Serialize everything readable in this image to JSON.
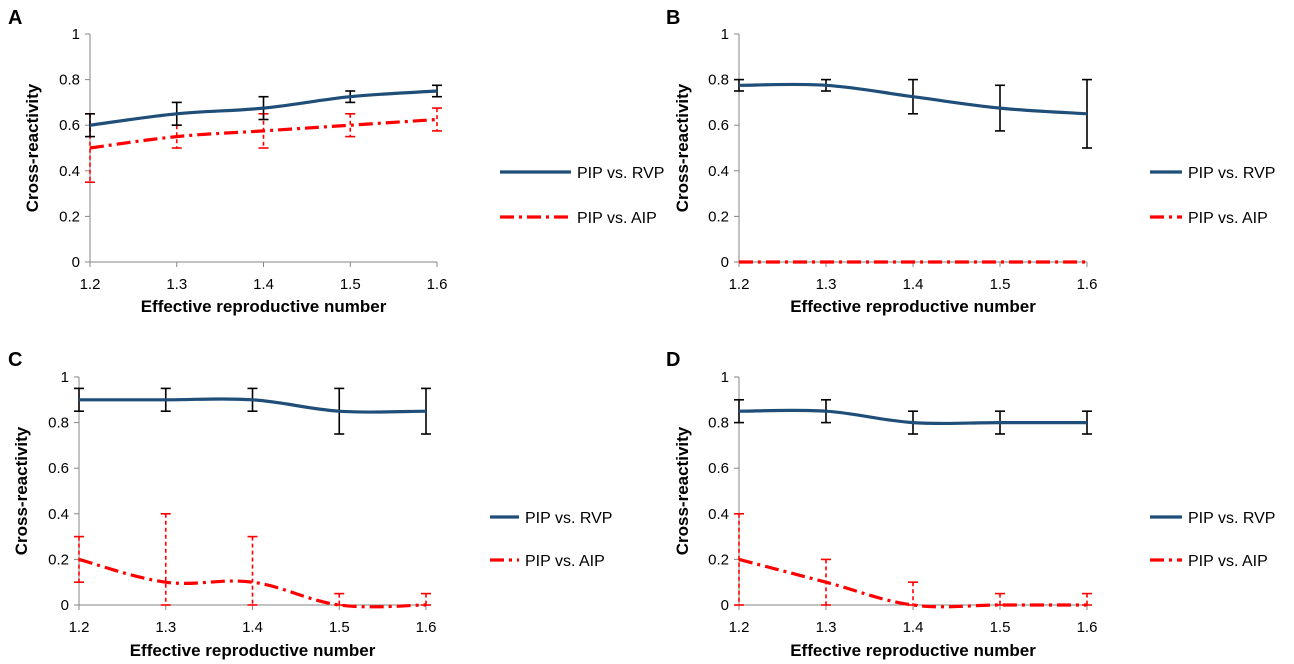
{
  "chart_data": [
    {
      "type": "line",
      "panel_label": "A",
      "title": "",
      "xlabel": "Effective reproductive number",
      "ylabel": "Cross-reactivity",
      "x": [
        1.2,
        1.3,
        1.4,
        1.5,
        1.6
      ],
      "xlim": [
        1.2,
        1.6
      ],
      "ylim": [
        0,
        1
      ],
      "y_ticks": [
        "0",
        "0.2",
        "0.4",
        "0.6",
        "0.8",
        "1"
      ],
      "x_ticks": [
        "1.2",
        "1.3",
        "1.4",
        "1.5",
        "1.6"
      ],
      "grid": false,
      "legend_position": "right",
      "series": [
        {
          "name": "PIP vs. RVP",
          "color": "#1F4E79",
          "style": "solid",
          "error_color": "#000000",
          "values": [
            0.6,
            0.65,
            0.675,
            0.725,
            0.75
          ],
          "errors": [
            0.05,
            0.05,
            0.05,
            0.025,
            0.025
          ]
        },
        {
          "name": "PIP vs. AIP",
          "color": "#FF0000",
          "style": "dash-dot",
          "error_color": "#FF0000",
          "values": [
            0.5,
            0.55,
            0.575,
            0.6,
            0.625
          ],
          "errors": [
            0.15,
            0.05,
            0.075,
            0.05,
            0.05
          ]
        }
      ]
    },
    {
      "type": "line",
      "panel_label": "B",
      "title": "",
      "xlabel": "Effective reproductive number",
      "ylabel": "Cross-reactivity",
      "x": [
        1.2,
        1.3,
        1.4,
        1.5,
        1.6
      ],
      "xlim": [
        1.2,
        1.6
      ],
      "ylim": [
        0,
        1
      ],
      "y_ticks": [
        "0",
        "0.2",
        "0.4",
        "0.6",
        "0.8",
        "1"
      ],
      "x_ticks": [
        "1.2",
        "1.3",
        "1.4",
        "1.5",
        "1.6"
      ],
      "grid": false,
      "legend_position": "right",
      "series": [
        {
          "name": "PIP vs. RVP",
          "color": "#1F4E79",
          "style": "solid",
          "error_color": "#000000",
          "values": [
            0.775,
            0.775,
            0.725,
            0.675,
            0.65
          ],
          "errors": [
            0.025,
            0.025,
            0.075,
            0.1,
            0.15
          ]
        },
        {
          "name": "PIP vs. AIP",
          "color": "#FF0000",
          "style": "dash-dot",
          "error_color": "#FF0000",
          "values": [
            0,
            0,
            0,
            0,
            0
          ],
          "errors": [
            0,
            0,
            0,
            0,
            0
          ]
        }
      ]
    },
    {
      "type": "line",
      "panel_label": "C",
      "title": "",
      "xlabel": "Effective reproductive number",
      "ylabel": "Cross-reactivity",
      "x": [
        1.2,
        1.3,
        1.4,
        1.5,
        1.6
      ],
      "xlim": [
        1.2,
        1.6
      ],
      "ylim": [
        0,
        1
      ],
      "y_ticks": [
        "0",
        "0.2",
        "0.4",
        "0.6",
        "0.8",
        "1"
      ],
      "x_ticks": [
        "1.2",
        "1.3",
        "1.4",
        "1.5",
        "1.6"
      ],
      "grid": false,
      "legend_position": "right",
      "series": [
        {
          "name": "PIP vs. RVP",
          "color": "#1F4E79",
          "style": "solid",
          "error_color": "#000000",
          "values": [
            0.9,
            0.9,
            0.9,
            0.85,
            0.85
          ],
          "errors": [
            0.05,
            0.05,
            0.05,
            0.1,
            0.1
          ]
        },
        {
          "name": "PIP vs. AIP",
          "color": "#FF0000",
          "style": "dash-dot",
          "error_color": "#FF0000",
          "values": [
            0.2,
            0.1,
            0.1,
            0,
            0
          ],
          "errors": [
            0.1,
            0.3,
            0.2,
            0.05,
            0.05
          ]
        }
      ]
    },
    {
      "type": "line",
      "panel_label": "D",
      "title": "",
      "xlabel": "Effective reproductive number",
      "ylabel": "Cross-reactivity",
      "x": [
        1.2,
        1.3,
        1.4,
        1.5,
        1.6
      ],
      "xlim": [
        1.2,
        1.6
      ],
      "ylim": [
        0,
        1
      ],
      "y_ticks": [
        "0",
        "0.2",
        "0.4",
        "0.6",
        "0.8",
        "1"
      ],
      "x_ticks": [
        "1.2",
        "1.3",
        "1.4",
        "1.5",
        "1.6"
      ],
      "grid": false,
      "legend_position": "right",
      "series": [
        {
          "name": "PIP vs. RVP",
          "color": "#1F4E79",
          "style": "solid",
          "error_color": "#000000",
          "values": [
            0.85,
            0.85,
            0.8,
            0.8,
            0.8
          ],
          "errors": [
            0.05,
            0.05,
            0.05,
            0.05,
            0.05
          ]
        },
        {
          "name": "PIP vs. AIP",
          "color": "#FF0000",
          "style": "dash-dot",
          "error_color": "#FF0000",
          "values": [
            0.2,
            0.1,
            0,
            0,
            0
          ],
          "errors": [
            0.2,
            0.1,
            0.1,
            0.05,
            0.05
          ]
        }
      ]
    }
  ]
}
